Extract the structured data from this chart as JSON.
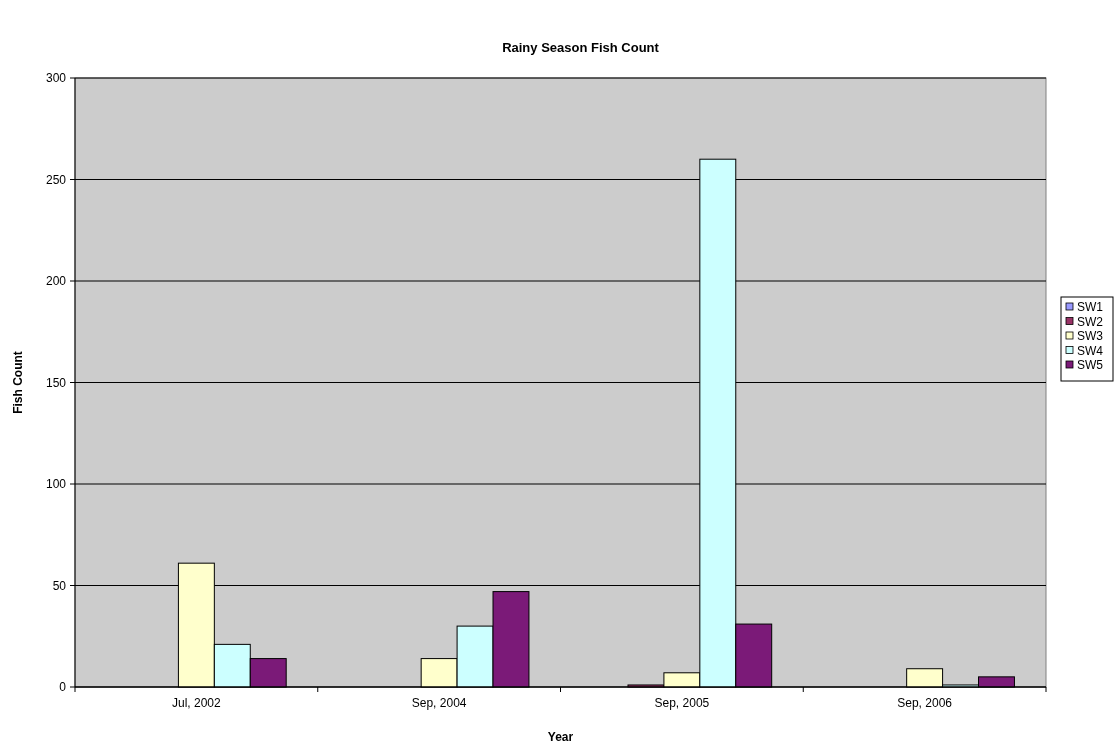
{
  "chart_data": {
    "type": "bar",
    "title": "Rainy Season Fish Count",
    "xlabel": "Year",
    "ylabel": "Fish Count",
    "categories": [
      "Jul, 2002",
      "Sep, 2004",
      "Sep, 2005",
      "Sep, 2006"
    ],
    "series": [
      {
        "name": "SW1",
        "color": "#9999ff",
        "values": [
          0,
          0,
          0,
          0
        ]
      },
      {
        "name": "SW2",
        "color": "#993366",
        "values": [
          0,
          0,
          1,
          0
        ]
      },
      {
        "name": "SW3",
        "color": "#ffffcc",
        "values": [
          61,
          14,
          7,
          9
        ]
      },
      {
        "name": "SW4",
        "color": "#ccffff",
        "values": [
          21,
          30,
          260,
          1
        ]
      },
      {
        "name": "SW5",
        "color": "#7b1a78",
        "values": [
          14,
          47,
          31,
          5
        ]
      }
    ],
    "ylim": [
      0,
      300
    ],
    "yticks": [
      0,
      50,
      100,
      150,
      200,
      250,
      300
    ],
    "grid": "y",
    "legend": "right"
  }
}
